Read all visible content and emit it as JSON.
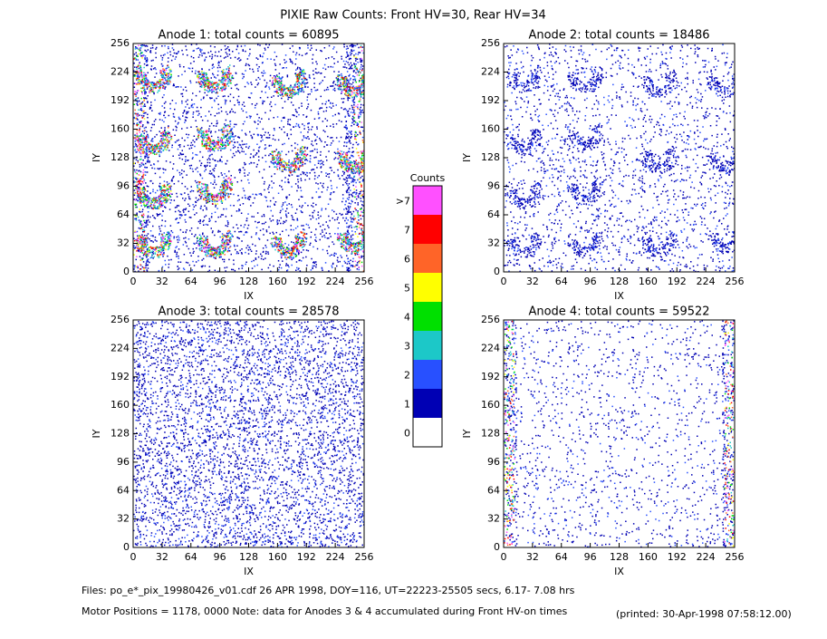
{
  "title": "PIXIE Raw Counts:  Front HV=30, Rear HV=34",
  "chart_data": [
    {
      "type": "heatmap",
      "title": "Anode 1: total counts = 60895",
      "xlabel": "IX",
      "ylabel": "IY",
      "xlim": [
        0,
        256
      ],
      "ylim": [
        0,
        256
      ],
      "xticks": [
        0,
        32,
        64,
        96,
        128,
        160,
        192,
        224,
        256
      ],
      "yticks": [
        0,
        32,
        64,
        96,
        128,
        160,
        192,
        224,
        256
      ]
    },
    {
      "type": "heatmap",
      "title": "Anode 2: total counts = 18486",
      "xlabel": "IX",
      "ylabel": "IY",
      "xlim": [
        0,
        256
      ],
      "ylim": [
        0,
        256
      ],
      "xticks": [
        0,
        32,
        64,
        96,
        128,
        160,
        192,
        224,
        256
      ],
      "yticks": [
        0,
        32,
        64,
        96,
        128,
        160,
        192,
        224,
        256
      ]
    },
    {
      "type": "heatmap",
      "title": "Anode 3: total counts = 28578",
      "xlabel": "IX",
      "ylabel": "IY",
      "xlim": [
        0,
        256
      ],
      "ylim": [
        0,
        256
      ],
      "xticks": [
        0,
        32,
        64,
        96,
        128,
        160,
        192,
        224,
        256
      ],
      "yticks": [
        0,
        32,
        64,
        96,
        128,
        160,
        192,
        224,
        256
      ]
    },
    {
      "type": "heatmap",
      "title": "Anode 4: total counts = 59522",
      "xlabel": "IX",
      "ylabel": "IY",
      "xlim": [
        0,
        256
      ],
      "ylim": [
        0,
        256
      ],
      "xticks": [
        0,
        32,
        64,
        96,
        128,
        160,
        192,
        224,
        256
      ],
      "yticks": [
        0,
        32,
        64,
        96,
        128,
        160,
        192,
        224,
        256
      ]
    }
  ],
  "colorbar": {
    "title": "Counts",
    "levels": [
      {
        "label": "0",
        "color": "#ffffff"
      },
      {
        "label": "1",
        "color": "#0000b4"
      },
      {
        "label": "2",
        "color": "#2850ff"
      },
      {
        "label": "3",
        "color": "#1cc8c8"
      },
      {
        "label": "4",
        "color": "#00e000"
      },
      {
        "label": "5",
        "color": "#ffff00"
      },
      {
        "label": "6",
        "color": "#ff6428"
      },
      {
        "label": "7",
        "color": "#ff0000"
      },
      {
        "label": ">7",
        "color": "#ff50ff"
      }
    ]
  },
  "footer": {
    "files": "Files: po_e*_pix_19980426_v01.cdf   26 APR 1998, DOY=116, UT=22223-25505 secs,  6.17- 7.08 hrs",
    "motor": "Motor Positions = 1178, 0000   Note: data for Anodes 3 & 4 accumulated during Front HV-on times",
    "printed": "(printed: 30-Apr-1998 07:58:12.00)"
  }
}
